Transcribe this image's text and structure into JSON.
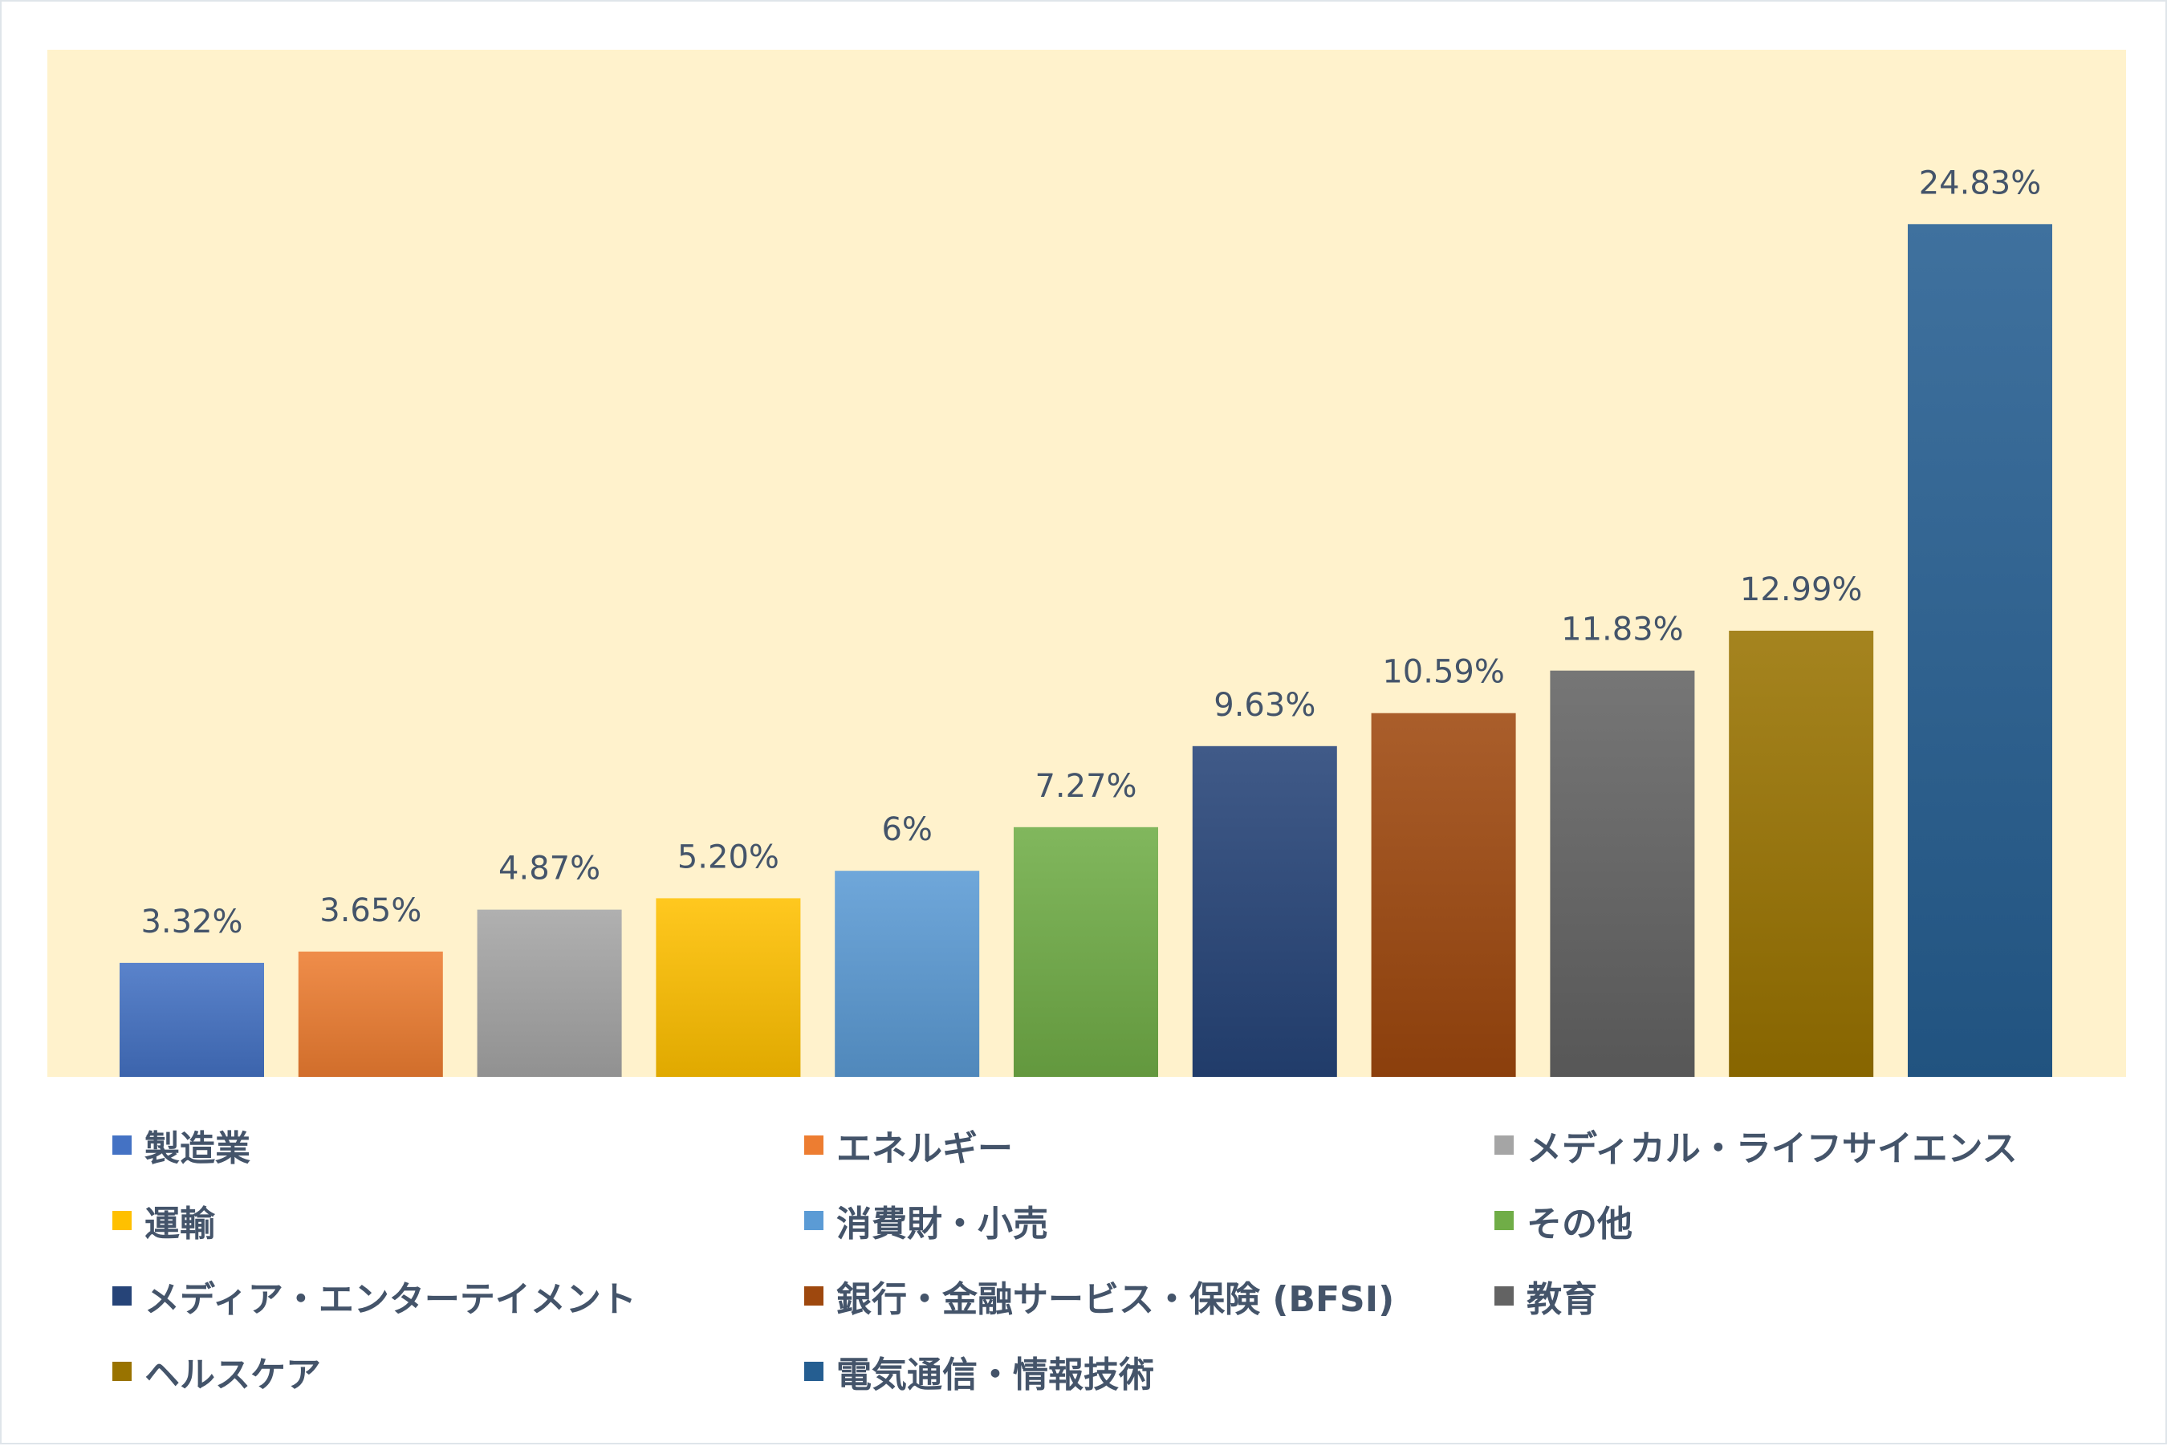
{
  "chart_data": {
    "type": "bar",
    "title": "",
    "xlabel": "",
    "ylabel": "",
    "ylim": [
      0,
      28
    ],
    "grid": false,
    "legend_position": "bottom",
    "categories": [
      "製造業",
      "エネルギー",
      "メディカル・ライフサイエンス",
      "運輸",
      "消費財・小売",
      "その他",
      "メディア・エンターテイメント",
      "銀行・金融サービス・保険 (BFSI)",
      "教育",
      "ヘルスケア",
      "電気通信・情報技術"
    ],
    "values": [
      3.32,
      3.65,
      4.87,
      5.2,
      6,
      7.27,
      9.63,
      10.59,
      11.83,
      12.99,
      24.83
    ],
    "value_labels": [
      "3.32%",
      "3.65%",
      "4.87%",
      "5.20%",
      "6%",
      "7.27%",
      "9.63%",
      "10.59%",
      "11.83%",
      "12.99%",
      "24.83%"
    ],
    "colors": [
      "#4472c4",
      "#ed7d31",
      "#a5a5a5",
      "#ffc000",
      "#5b9bd5",
      "#70ad47",
      "#264478",
      "#9e480e",
      "#636363",
      "#997300",
      "#255e91"
    ]
  },
  "plot_background": "#fff2cc",
  "text_color": "#44546a"
}
